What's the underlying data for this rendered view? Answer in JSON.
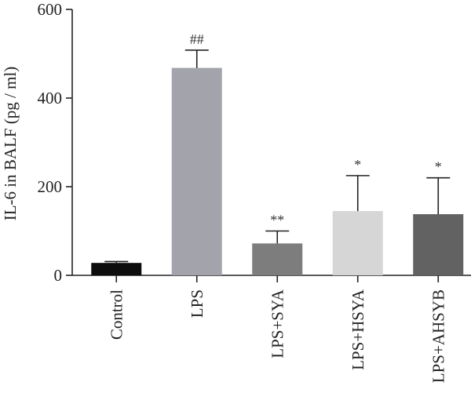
{
  "chart_data": {
    "type": "bar",
    "title": "",
    "xlabel": "",
    "ylabel": "IL-6 in BALF (pg / ml)",
    "ylim": [
      0,
      600
    ],
    "yticks": [
      0,
      200,
      400,
      600
    ],
    "grid": false,
    "legend": "none",
    "categories": [
      "Control",
      "LPS",
      "LPS+SYA",
      "LPS+HSYA",
      "LPS+AHSYB"
    ],
    "values": [
      28,
      468,
      72,
      145,
      138
    ],
    "error_upper": [
      3,
      40,
      28,
      80,
      82
    ],
    "significance": [
      "",
      "##",
      "**",
      "*",
      "*"
    ],
    "bar_colors": [
      "#0d0d0d",
      "#a3a3ab",
      "#7d7d7d",
      "#d6d6d6",
      "#626262"
    ]
  }
}
